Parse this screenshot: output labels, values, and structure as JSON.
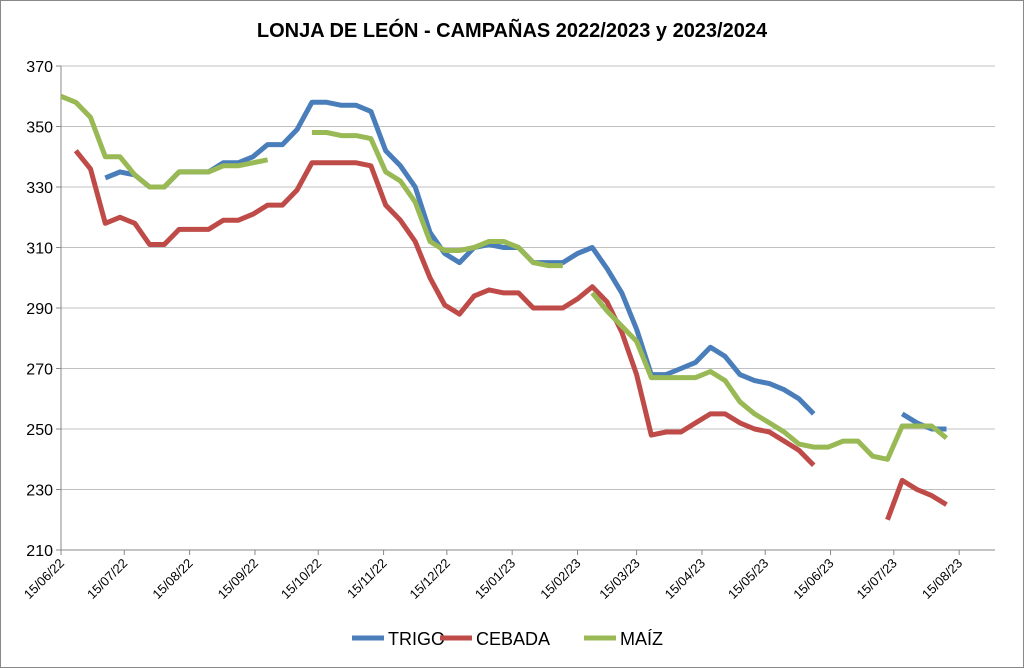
{
  "chart_data": {
    "type": "line",
    "title": "LONJA DE LEÓN - CAMPAÑAS 2022/2023 y 2023/2024",
    "x": [
      "15/06/22",
      "22/06/22",
      "29/06/22",
      "06/07/22",
      "13/07/22",
      "20/07/22",
      "27/07/22",
      "03/08/22",
      "10/08/22",
      "17/08/22",
      "24/08/22",
      "31/08/22",
      "07/09/22",
      "14/09/22",
      "21/09/22",
      "28/09/22",
      "05/10/22",
      "12/10/22",
      "19/10/22",
      "26/10/22",
      "02/11/22",
      "09/11/22",
      "16/11/22",
      "23/11/22",
      "30/11/22",
      "07/12/22",
      "14/12/22",
      "21/12/22",
      "28/12/22",
      "04/01/23",
      "11/01/23",
      "18/01/23",
      "25/01/23",
      "01/02/23",
      "08/02/23",
      "15/02/23",
      "22/02/23",
      "01/03/23",
      "08/03/23",
      "15/03/23",
      "22/03/23",
      "29/03/23",
      "05/04/23",
      "12/04/23",
      "19/04/23",
      "26/04/23",
      "03/05/23",
      "10/05/23",
      "17/05/23",
      "24/05/23",
      "31/05/23",
      "07/06/23",
      "14/06/23",
      "21/06/23",
      "28/06/23",
      "05/07/23",
      "12/07/23",
      "19/07/23",
      "26/07/23",
      "02/08/23",
      "09/08/23"
    ],
    "series": [
      {
        "name": "TRIGO",
        "color": "#4a7ebb",
        "values": [
          null,
          null,
          null,
          333,
          335,
          334,
          330,
          330,
          335,
          335,
          335,
          338,
          338,
          340,
          344,
          344,
          349,
          358,
          358,
          357,
          357,
          355,
          342,
          337,
          330,
          315,
          308,
          305,
          310,
          311,
          310,
          310,
          305,
          305,
          305,
          308,
          310,
          303,
          295,
          283,
          268,
          268,
          270,
          272,
          277,
          274,
          268,
          266,
          265,
          263,
          260,
          255,
          null,
          null,
          null,
          null,
          null,
          255,
          252,
          250,
          250
        ]
      },
      {
        "name": "CEBADA",
        "color": "#be4b48",
        "values": [
          null,
          342,
          336,
          318,
          320,
          318,
          311,
          311,
          316,
          316,
          316,
          319,
          319,
          321,
          324,
          324,
          329,
          338,
          338,
          338,
          338,
          337,
          324,
          319,
          312,
          300,
          291,
          288,
          294,
          296,
          295,
          295,
          290,
          290,
          290,
          293,
          297,
          292,
          282,
          268,
          248,
          249,
          249,
          252,
          255,
          255,
          252,
          250,
          249,
          246,
          243,
          238,
          null,
          null,
          null,
          null,
          220,
          233,
          230,
          228,
          225
        ]
      },
      {
        "name": "MAÍZ",
        "color": "#98b954",
        "values": [
          360,
          358,
          353,
          340,
          340,
          334,
          330,
          330,
          335,
          335,
          335,
          337,
          337,
          338,
          339,
          null,
          null,
          348,
          348,
          347,
          347,
          346,
          335,
          332,
          325,
          312,
          309,
          309,
          310,
          312,
          312,
          310,
          305,
          304,
          304,
          null,
          295,
          289,
          284,
          279,
          267,
          267,
          267,
          267,
          269,
          266,
          259,
          255,
          252,
          249,
          245,
          244,
          244,
          246,
          246,
          241,
          240,
          251,
          251,
          251,
          247
        ]
      }
    ],
    "xlim": [
      "15/06/22",
      "01/09/23"
    ],
    "xticks": [
      "15/06/22",
      "15/07/22",
      "15/08/22",
      "15/09/22",
      "15/10/22",
      "15/11/22",
      "15/12/22",
      "15/01/23",
      "15/02/23",
      "15/03/23",
      "15/04/23",
      "15/05/23",
      "15/06/23",
      "15/07/23",
      "15/08/23"
    ],
    "ylim": [
      210,
      370
    ],
    "yticks": [
      210,
      230,
      250,
      270,
      290,
      310,
      330,
      350,
      370
    ],
    "grid": true
  }
}
